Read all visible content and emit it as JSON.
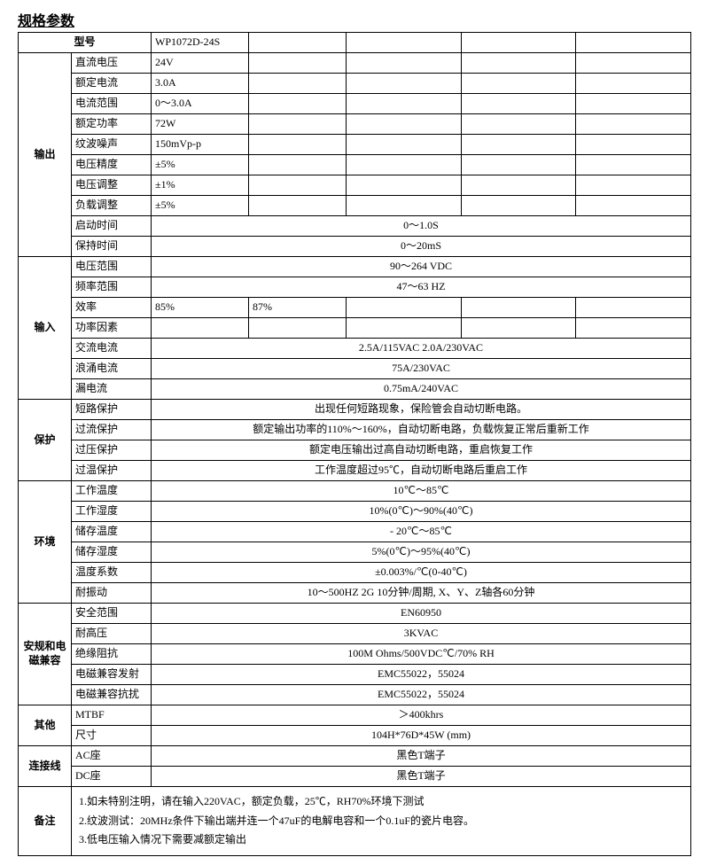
{
  "title": "规格参数",
  "header": {
    "model_label": "型号",
    "model_value": "WP1072D-24S"
  },
  "sections": {
    "output": {
      "label": "输出",
      "rows": [
        {
          "param": "直流电压",
          "v1": "24V"
        },
        {
          "param": "额定电流",
          "v1": "3.0A"
        },
        {
          "param": "电流范围",
          "v1": "0～3.0A"
        },
        {
          "param": "额定功率",
          "v1": "72W"
        },
        {
          "param": "纹波噪声",
          "v1": "150mVp-p"
        },
        {
          "param": "电压精度",
          "v1": "±5%"
        },
        {
          "param": "电压调整",
          "v1": "±1%"
        },
        {
          "param": "负载调整",
          "v1": "±5%"
        },
        {
          "param": "启动时间",
          "merged": "0～1.0S"
        },
        {
          "param": "保持时间",
          "merged": "0～20mS"
        }
      ]
    },
    "input": {
      "label": "输入",
      "rows": [
        {
          "param": "电压范围",
          "merged": "90～264 VDC"
        },
        {
          "param": "频率范围",
          "merged": "47～63 HZ"
        },
        {
          "param": "效率",
          "v1": "85%",
          "v2": "87%"
        },
        {
          "param": "功率因素",
          "v1": ""
        },
        {
          "param": "交流电流",
          "merged": "2.5A/115VAC  2.0A/230VAC"
        },
        {
          "param": "浪涌电流",
          "merged": "75A/230VAC"
        },
        {
          "param": "漏电流",
          "merged": "0.75mA/240VAC"
        }
      ]
    },
    "protection": {
      "label": "保护",
      "rows": [
        {
          "param": "短路保护",
          "merged": "出现任何短路现象，保险管会自动切断电路。"
        },
        {
          "param": "过流保护",
          "merged": "额定输出功率的110%～160%，自动切断电路，负载恢复正常后重新工作"
        },
        {
          "param": "过压保护",
          "merged": "额定电压输出过高自动切断电路，重启恢复工作"
        },
        {
          "param": "过温保护",
          "merged": "工作温度超过95℃，自动切断电路后重启工作"
        }
      ]
    },
    "environment": {
      "label": "环境",
      "rows": [
        {
          "param": "工作温度",
          "merged": "10℃～85℃"
        },
        {
          "param": "工作湿度",
          "merged": "10%(0℃)～90%(40℃)"
        },
        {
          "param": "储存温度",
          "merged": "- 20℃～85℃"
        },
        {
          "param": "储存湿度",
          "merged": "5%(0℃)～95%(40℃)"
        },
        {
          "param": "温度系数",
          "merged": "±0.003%/℃(0-40℃)"
        },
        {
          "param": "耐振动",
          "merged": "10～500HZ 2G 10分钟/周期, X、Y、Z轴各60分钟"
        }
      ]
    },
    "safety": {
      "label": "安规和电磁兼容",
      "rows": [
        {
          "param": "安全范围",
          "merged": "EN60950"
        },
        {
          "param": "耐高压",
          "merged": "3KVAC"
        },
        {
          "param": "绝缘阻抗",
          "merged": "100M Ohms/500VDC℃/70% RH"
        },
        {
          "param": "电磁兼容发射",
          "merged": "EMC55022，55024"
        },
        {
          "param": "电磁兼容抗扰",
          "merged": "EMC55022，55024"
        }
      ]
    },
    "other": {
      "label": "其他",
      "rows": [
        {
          "param": "MTBF",
          "merged": "＞400khrs"
        },
        {
          "param": "尺寸",
          "merged": "104H*76D*45W (mm)"
        }
      ]
    },
    "connector": {
      "label": "连接线",
      "rows": [
        {
          "param": "AC座",
          "merged": "黑色T端子"
        },
        {
          "param": "DC座",
          "merged": "黑色T端子"
        }
      ]
    },
    "notes": {
      "label": "备注",
      "lines": [
        "1.如未特别注明，请在输入220VAC，额定负载，25℃，RH70%环境下测试",
        "2.纹波测试：20MHz条件下输出端并连一个47uF的电解电容和一个0.1uF的瓷片电容。",
        "3.低电压输入情况下需要减额定输出"
      ]
    }
  }
}
